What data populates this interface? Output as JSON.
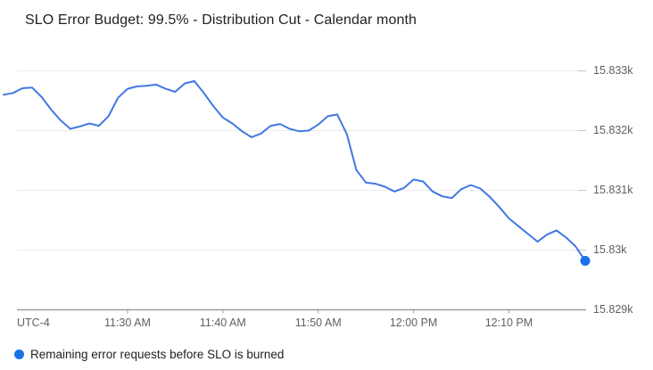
{
  "header": {
    "title": "SLO Error Budget: 99.5% - Distribution Cut - Calendar month"
  },
  "legend": {
    "label": "Remaining error requests before SLO is burned",
    "dot_icon": "filled-circle",
    "dot_color": "#1a73e8"
  },
  "chart_data": {
    "type": "line",
    "title": "SLO Error Budget: 99.5% - Distribution Cut - Calendar month",
    "series_name": "Remaining error requests before SLO is burned",
    "x_axis_note": "UTC-4",
    "start_time": "11:17 AM",
    "end_time": "12:18 PM",
    "interval_minutes": 1,
    "x_ticks": [
      {
        "label": "11:30 AM",
        "min": 13
      },
      {
        "label": "11:40 AM",
        "min": 23
      },
      {
        "label": "11:50 AM",
        "min": 33
      },
      {
        "label": "12:00 PM",
        "min": 43
      },
      {
        "label": "12:10 PM",
        "min": 53
      }
    ],
    "y_ticks": [
      {
        "label": "15.833k",
        "value": 15833
      },
      {
        "label": "15.832k",
        "value": 15832
      },
      {
        "label": "15.831k",
        "value": 15831
      },
      {
        "label": "15.83k",
        "value": 15830
      },
      {
        "label": "15.829k",
        "value": 15829
      }
    ],
    "ylim": [
      15829,
      15833.3
    ],
    "grid": true,
    "legend_position": "bottom",
    "values": [
      15832.6,
      15832.63,
      15832.71,
      15832.72,
      15832.56,
      15832.35,
      15832.17,
      15832.03,
      15832.07,
      15832.12,
      15832.08,
      15832.24,
      15832.55,
      15832.7,
      15832.74,
      15832.75,
      15832.77,
      15832.7,
      15832.65,
      15832.79,
      15832.83,
      15832.63,
      15832.41,
      15832.22,
      15832.12,
      15831.99,
      15831.89,
      15831.95,
      15832.08,
      15832.11,
      15832.03,
      15831.99,
      15832.0,
      15832.1,
      15832.24,
      15832.27,
      15831.94,
      15831.34,
      15831.13,
      15831.11,
      15831.06,
      15830.98,
      15831.04,
      15831.18,
      15831.15,
      15830.98,
      15830.9,
      15830.87,
      15831.02,
      15831.09,
      15831.03,
      15830.89,
      15830.72,
      15830.53,
      15830.4,
      15830.27,
      15830.14,
      15830.26,
      15830.33,
      15830.21,
      15830.06,
      15829.82
    ],
    "colors": {
      "line": "#4178e3",
      "end_dot": "#1a73e8",
      "gridline": "#eaeaea",
      "grid_stub": "#c4c4c4",
      "axis": "#9e9e9e",
      "tick": "#9e9e9e",
      "tick_text": "#616161",
      "title_text": "#202124"
    }
  }
}
